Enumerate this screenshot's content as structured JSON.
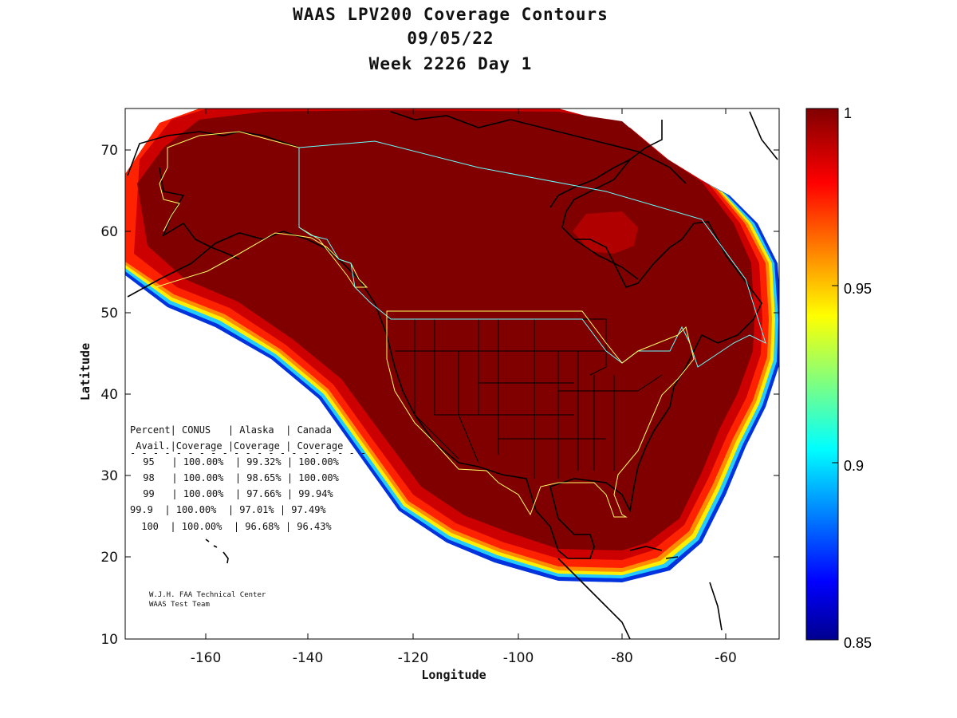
{
  "title": {
    "line1": "WAAS LPV200 Coverage Contours",
    "line2": "09/05/22",
    "line3": "Week 2226 Day 1"
  },
  "axes": {
    "xlabel": "Longitude",
    "ylabel": "Latitude",
    "xticks": [
      "-160",
      "-140",
      "-120",
      "-100",
      "-80",
      "-60"
    ],
    "yticks": [
      "70",
      "60",
      "50",
      "40",
      "30",
      "20",
      "10"
    ],
    "xlim": [
      -175,
      -50
    ],
    "ylim": [
      10,
      75
    ]
  },
  "colorbar": {
    "ticks": [
      "1",
      "0.95",
      "0.9",
      "0.85"
    ],
    "range": [
      0.85,
      1.0
    ],
    "colormap": "jet"
  },
  "colors": {
    "max": "#800000",
    "ring_red": "#ff1a00",
    "orange": "#ff9900",
    "yellow": "#ffee00",
    "cyan": "#00ccff",
    "blue": "#0022cc",
    "alaska_boundary": "#ffff66",
    "canada_boundary": "#66ffff"
  },
  "table": {
    "header1": "Percent| CONUS   | Alaska  | Canada",
    "header2": " Avail.|Coverage |Coverage | Coverage",
    "divider": "- - - - - - - - - - - - - - - - - - - - -",
    "rows": [
      " 95   | 100.00%  | 99.32% | 100.00%",
      " 98   | 100.00%  | 98.65% | 100.00%",
      " 99   | 100.00%  | 97.66% | 99.94%",
      "99.9  | 100.00%  | 97.01% | 97.49%",
      " 100  | 100.00%  | 96.68% | 96.43%"
    ]
  },
  "credit": {
    "line1": "W.J.H. FAA Technical Center",
    "line2": "WAAS Test Team"
  },
  "chart_data": {
    "type": "heatmap",
    "title": "WAAS LPV200 Coverage Contours",
    "xlabel": "Longitude",
    "ylabel": "Latitude",
    "xlim": [
      -175,
      -50
    ],
    "ylim": [
      10,
      75
    ],
    "colorbar_range": [
      0.85,
      1.0
    ],
    "coverage_table": {
      "columns": [
        "Percent Avail.",
        "CONUS Coverage",
        "Alaska Coverage",
        "Canada Coverage"
      ],
      "rows": [
        [
          "95",
          "100.00%",
          "99.32%",
          "100.00%"
        ],
        [
          "98",
          "100.00%",
          "98.65%",
          "100.00%"
        ],
        [
          "99",
          "100.00%",
          "97.66%",
          "99.94%"
        ],
        [
          "99.9",
          "100.00%",
          "97.01%",
          "97.49%"
        ],
        [
          "100",
          "100.00%",
          "96.68%",
          "96.43%"
        ]
      ]
    }
  }
}
